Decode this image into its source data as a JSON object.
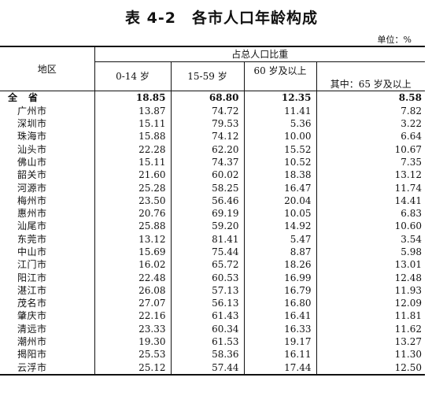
{
  "title": "表 4-2　各市人口年龄构成",
  "unit": "单位：%",
  "header": {
    "region": "地区",
    "group": "占总人口比重",
    "col_0_14": "0-14 岁",
    "col_15_59": "15-59 岁",
    "col_60_plus": "60 岁及以上",
    "col_65_plus": "其中：65 岁及以上"
  },
  "rows": [
    {
      "region": "全省",
      "a": "18.85",
      "b": "68.80",
      "c": "12.35",
      "d": "8.58"
    },
    {
      "region": "广州市",
      "a": "13.87",
      "b": "74.72",
      "c": "11.41",
      "d": "7.82"
    },
    {
      "region": "深圳市",
      "a": "15.11",
      "b": "79.53",
      "c": "5.36",
      "d": "3.22"
    },
    {
      "region": "珠海市",
      "a": "15.88",
      "b": "74.12",
      "c": "10.00",
      "d": "6.64"
    },
    {
      "region": "汕头市",
      "a": "22.28",
      "b": "62.20",
      "c": "15.52",
      "d": "10.67"
    },
    {
      "region": "佛山市",
      "a": "15.11",
      "b": "74.37",
      "c": "10.52",
      "d": "7.35"
    },
    {
      "region": "韶关市",
      "a": "21.60",
      "b": "60.02",
      "c": "18.38",
      "d": "13.12"
    },
    {
      "region": "河源市",
      "a": "25.28",
      "b": "58.25",
      "c": "16.47",
      "d": "11.74"
    },
    {
      "region": "梅州市",
      "a": "23.50",
      "b": "56.46",
      "c": "20.04",
      "d": "14.41"
    },
    {
      "region": "惠州市",
      "a": "20.76",
      "b": "69.19",
      "c": "10.05",
      "d": "6.83"
    },
    {
      "region": "汕尾市",
      "a": "25.88",
      "b": "59.20",
      "c": "14.92",
      "d": "10.60"
    },
    {
      "region": "东莞市",
      "a": "13.12",
      "b": "81.41",
      "c": "5.47",
      "d": "3.54"
    },
    {
      "region": "中山市",
      "a": "15.69",
      "b": "75.44",
      "c": "8.87",
      "d": "5.98"
    },
    {
      "region": "江门市",
      "a": "16.02",
      "b": "65.72",
      "c": "18.26",
      "d": "13.01"
    },
    {
      "region": "阳江市",
      "a": "22.48",
      "b": "60.53",
      "c": "16.99",
      "d": "12.48"
    },
    {
      "region": "湛江市",
      "a": "26.08",
      "b": "57.13",
      "c": "16.79",
      "d": "11.93"
    },
    {
      "region": "茂名市",
      "a": "27.07",
      "b": "56.13",
      "c": "16.80",
      "d": "12.09"
    },
    {
      "region": "肇庆市",
      "a": "22.16",
      "b": "61.43",
      "c": "16.41",
      "d": "11.81"
    },
    {
      "region": "清远市",
      "a": "23.33",
      "b": "60.34",
      "c": "16.33",
      "d": "11.62"
    },
    {
      "region": "潮州市",
      "a": "19.30",
      "b": "61.53",
      "c": "19.17",
      "d": "13.27"
    },
    {
      "region": "揭阳市",
      "a": "25.53",
      "b": "58.36",
      "c": "16.11",
      "d": "11.30"
    },
    {
      "region": "云浮市",
      "a": "25.12",
      "b": "57.44",
      "c": "17.44",
      "d": "12.50"
    }
  ]
}
